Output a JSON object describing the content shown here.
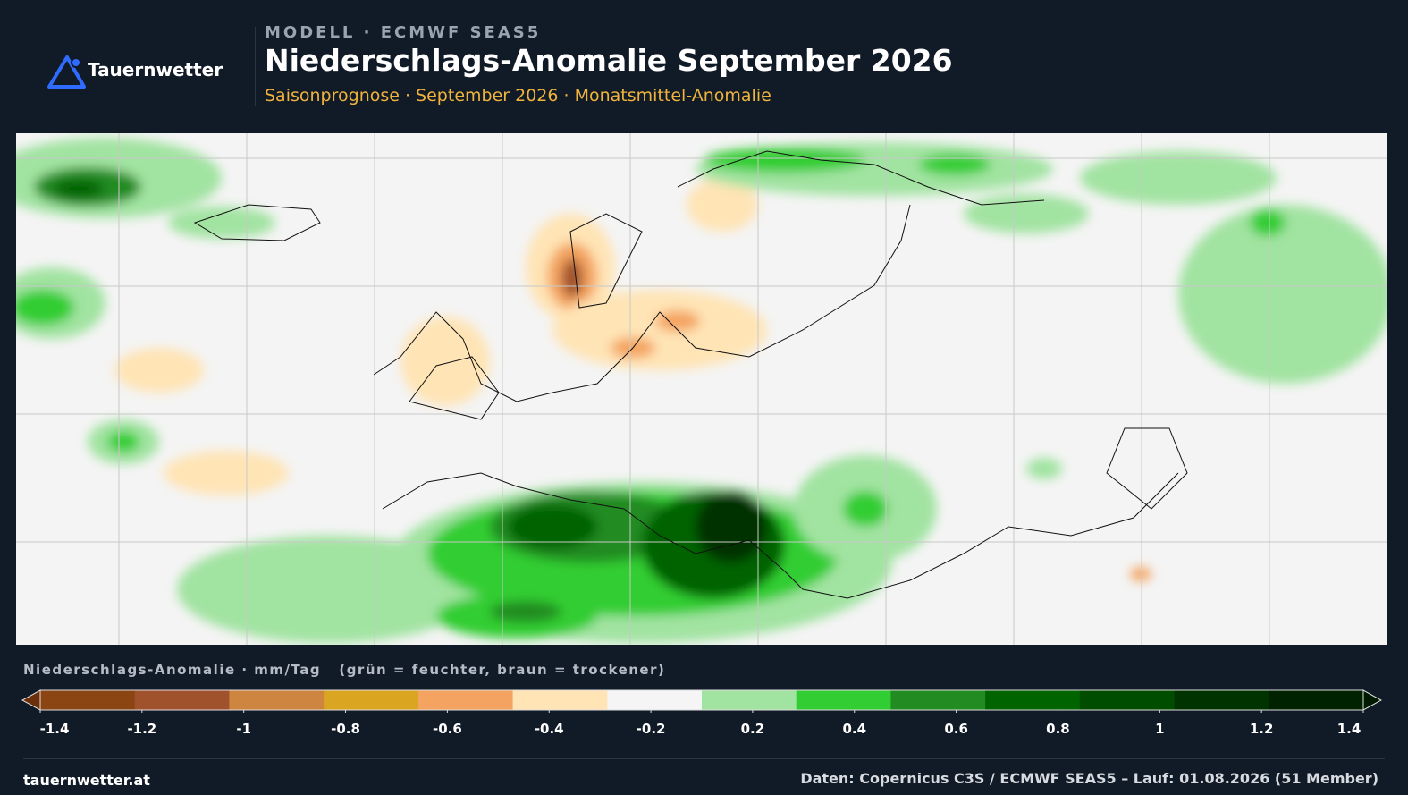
{
  "header": {
    "brand": "Tauernwetter",
    "model": "MODELL · ECMWF SEAS5",
    "title": "Niederschlags-Anomalie September 2026",
    "subtitle": "Saisonprognose · September 2026 · Monatsmittel-Anomalie"
  },
  "legend": {
    "title": "Niederschlags-Anomalie · mm/Tag",
    "note": "(grün = feuchter, braun = trockener)",
    "ticks": [
      -1.4,
      -1.2,
      -1,
      -0.8,
      -0.6,
      -0.4,
      -0.2,
      0.2,
      0.4,
      0.6,
      0.8,
      1,
      1.2,
      1.4
    ],
    "colors": [
      "#8b4513",
      "#a0522d",
      "#cd853f",
      "#daa520",
      "#f4a460",
      "#ffe4b5",
      "#f5f5f5",
      "#a1e3a1",
      "#32cd32",
      "#228b22",
      "#006400",
      "#004d00",
      "#003300",
      "#002200"
    ],
    "under_color": "#6b2f0c",
    "over_color": "#001a00"
  },
  "footer": {
    "site": "tauernwetter.at",
    "source": "Daten: Copernicus C3S / ECMWF SEAS5 – Lauf: 01.08.2026 (51 Member)"
  }
}
